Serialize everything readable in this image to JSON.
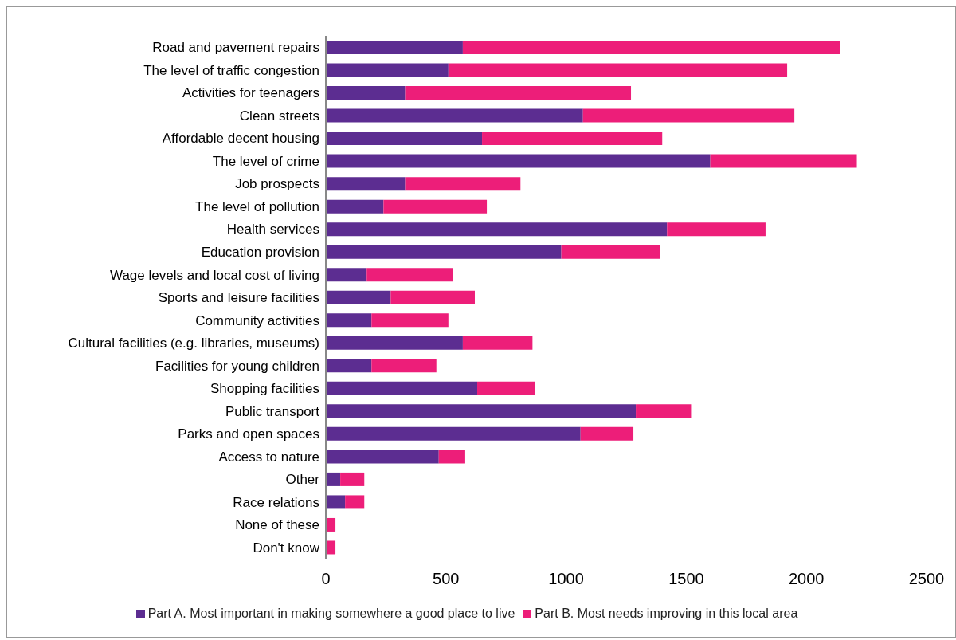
{
  "chart_data": {
    "type": "bar",
    "orientation": "horizontal",
    "stacked": true,
    "categories": [
      "Road and pavement repairs",
      "The level of traffic congestion",
      "Activities for teenagers",
      "Clean streets",
      "Affordable decent housing",
      "The level of crime",
      "Job prospects",
      "The level of pollution",
      "Health services",
      "Education provision",
      "Wage levels and local cost of living",
      "Sports and leisure facilities",
      "Community activities",
      "Cultural facilities (e.g. libraries, museums)",
      "Facilities for young children",
      "Shopping facilities",
      "Public transport",
      "Parks and open spaces",
      "Access to nature",
      "Other",
      "Race relations",
      "None of these",
      "Don't know"
    ],
    "series": [
      {
        "name": "Part A. Most important in making somewhere a good place to live",
        "color": "#5c2d91",
        "values": [
          570,
          510,
          330,
          1070,
          650,
          1600,
          330,
          240,
          1420,
          980,
          170,
          270,
          190,
          570,
          190,
          630,
          1290,
          1060,
          470,
          60,
          80,
          0,
          0
        ]
      },
      {
        "name": "Part B. Most needs improving in this local area",
        "color": "#ed1e79",
        "values": [
          1570,
          1410,
          940,
          880,
          750,
          610,
          480,
          430,
          410,
          410,
          360,
          350,
          320,
          290,
          270,
          240,
          230,
          220,
          110,
          100,
          80,
          40,
          40
        ]
      }
    ],
    "xlim": [
      0,
      2500
    ],
    "xticks": [
      0,
      500,
      1000,
      1500,
      2000,
      2500
    ],
    "grid": false,
    "legend": "bottom"
  }
}
